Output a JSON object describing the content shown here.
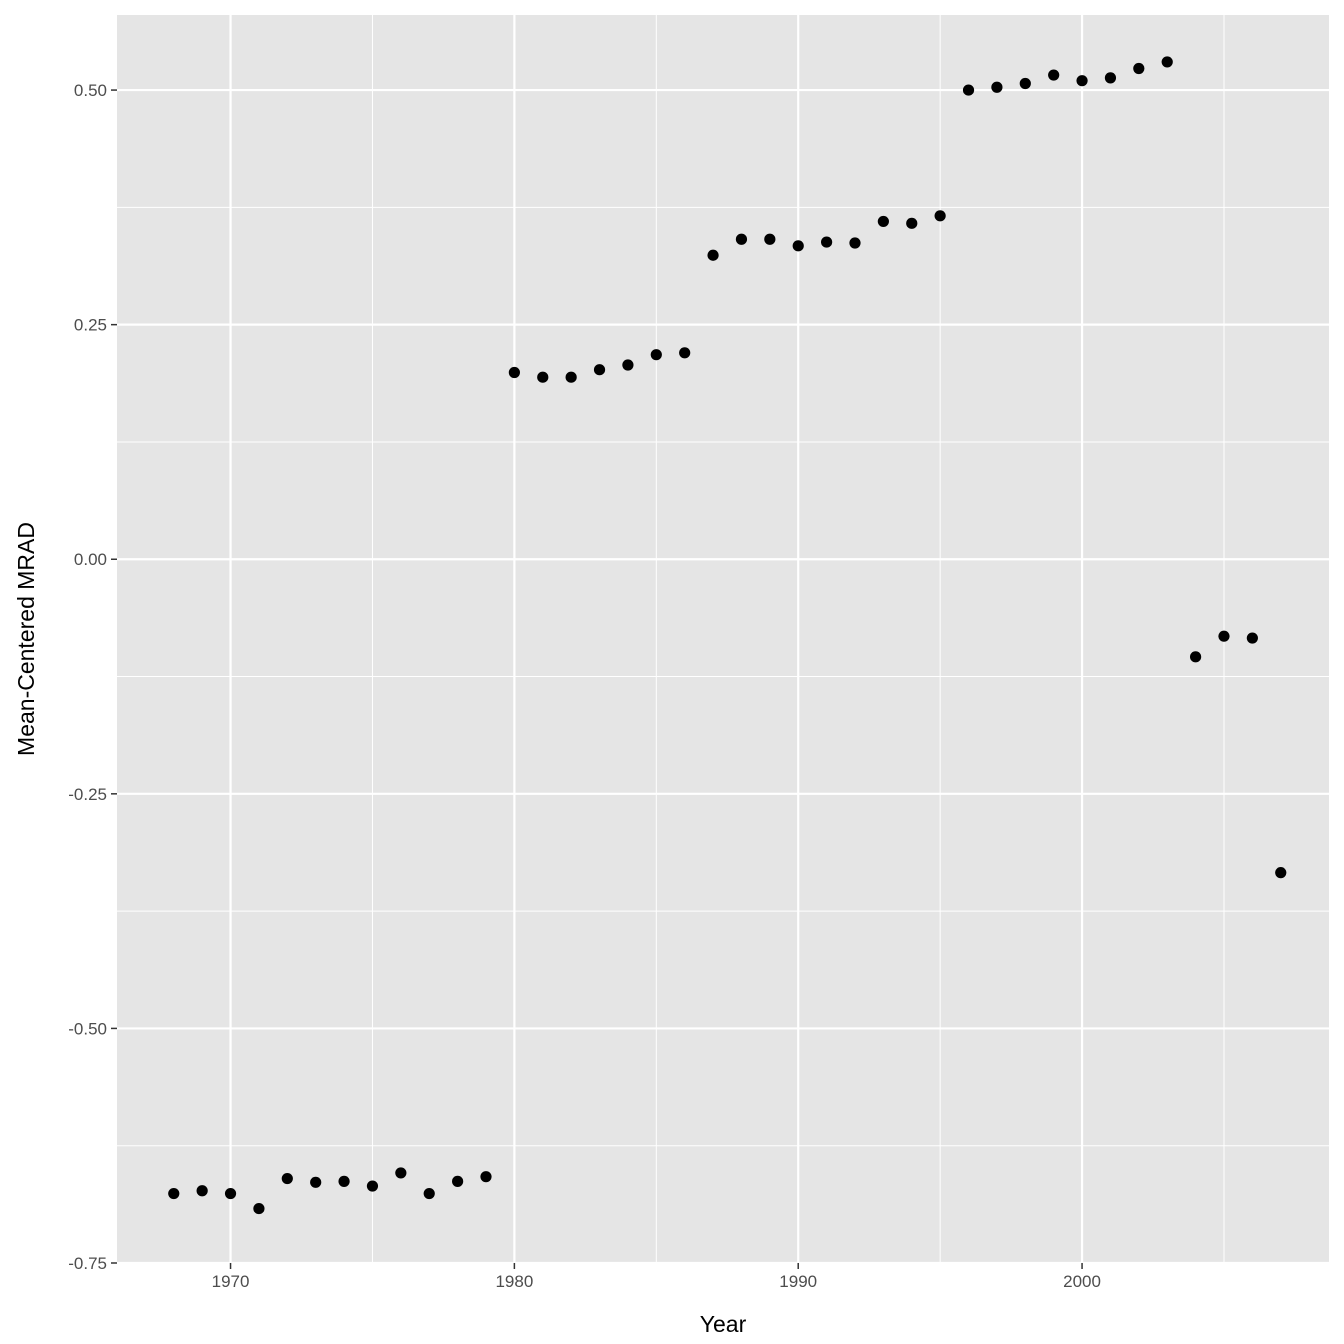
{
  "chart_data": {
    "type": "scatter",
    "title": "",
    "xlabel": "Year",
    "ylabel": "Mean-Centered MRAD",
    "xlim": [
      1966,
      2008.7
    ],
    "ylim": [
      -0.75,
      0.58
    ],
    "x_ticks": [
      1970,
      1980,
      1990,
      2000
    ],
    "x_tick_labels": [
      "1970",
      "1980",
      "1990",
      "2000"
    ],
    "y_ticks": [
      -0.75,
      -0.5,
      -0.25,
      0.0,
      0.25,
      0.5
    ],
    "y_tick_labels": [
      "-0.75",
      "-0.50",
      "-0.25",
      "0.00",
      "0.25",
      "0.50"
    ],
    "grid": true,
    "legend": "none",
    "colors": {
      "panel": "#e5e5e5",
      "grid": "#ffffff",
      "point": "#000000"
    },
    "x": [
      1968,
      1969,
      1970,
      1971,
      1972,
      1973,
      1974,
      1975,
      1976,
      1977,
      1978,
      1979,
      1980,
      1981,
      1982,
      1983,
      1984,
      1985,
      1986,
      1987,
      1988,
      1989,
      1990,
      1991,
      1992,
      1993,
      1994,
      1995,
      1996,
      1997,
      1998,
      1999,
      2000,
      2001,
      2002,
      2003,
      2004,
      2005,
      2006,
      2007
    ],
    "y": [
      -0.676,
      -0.673,
      -0.676,
      -0.692,
      -0.66,
      -0.664,
      -0.663,
      -0.668,
      -0.654,
      -0.676,
      -0.663,
      -0.658,
      0.199,
      0.194,
      0.194,
      0.202,
      0.207,
      0.218,
      0.22,
      0.324,
      0.341,
      0.341,
      0.334,
      0.338,
      0.337,
      0.36,
      0.358,
      0.366,
      0.5,
      0.503,
      0.507,
      0.516,
      0.51,
      0.513,
      0.523,
      0.53,
      -0.104,
      -0.082,
      -0.084,
      -0.334
    ]
  }
}
